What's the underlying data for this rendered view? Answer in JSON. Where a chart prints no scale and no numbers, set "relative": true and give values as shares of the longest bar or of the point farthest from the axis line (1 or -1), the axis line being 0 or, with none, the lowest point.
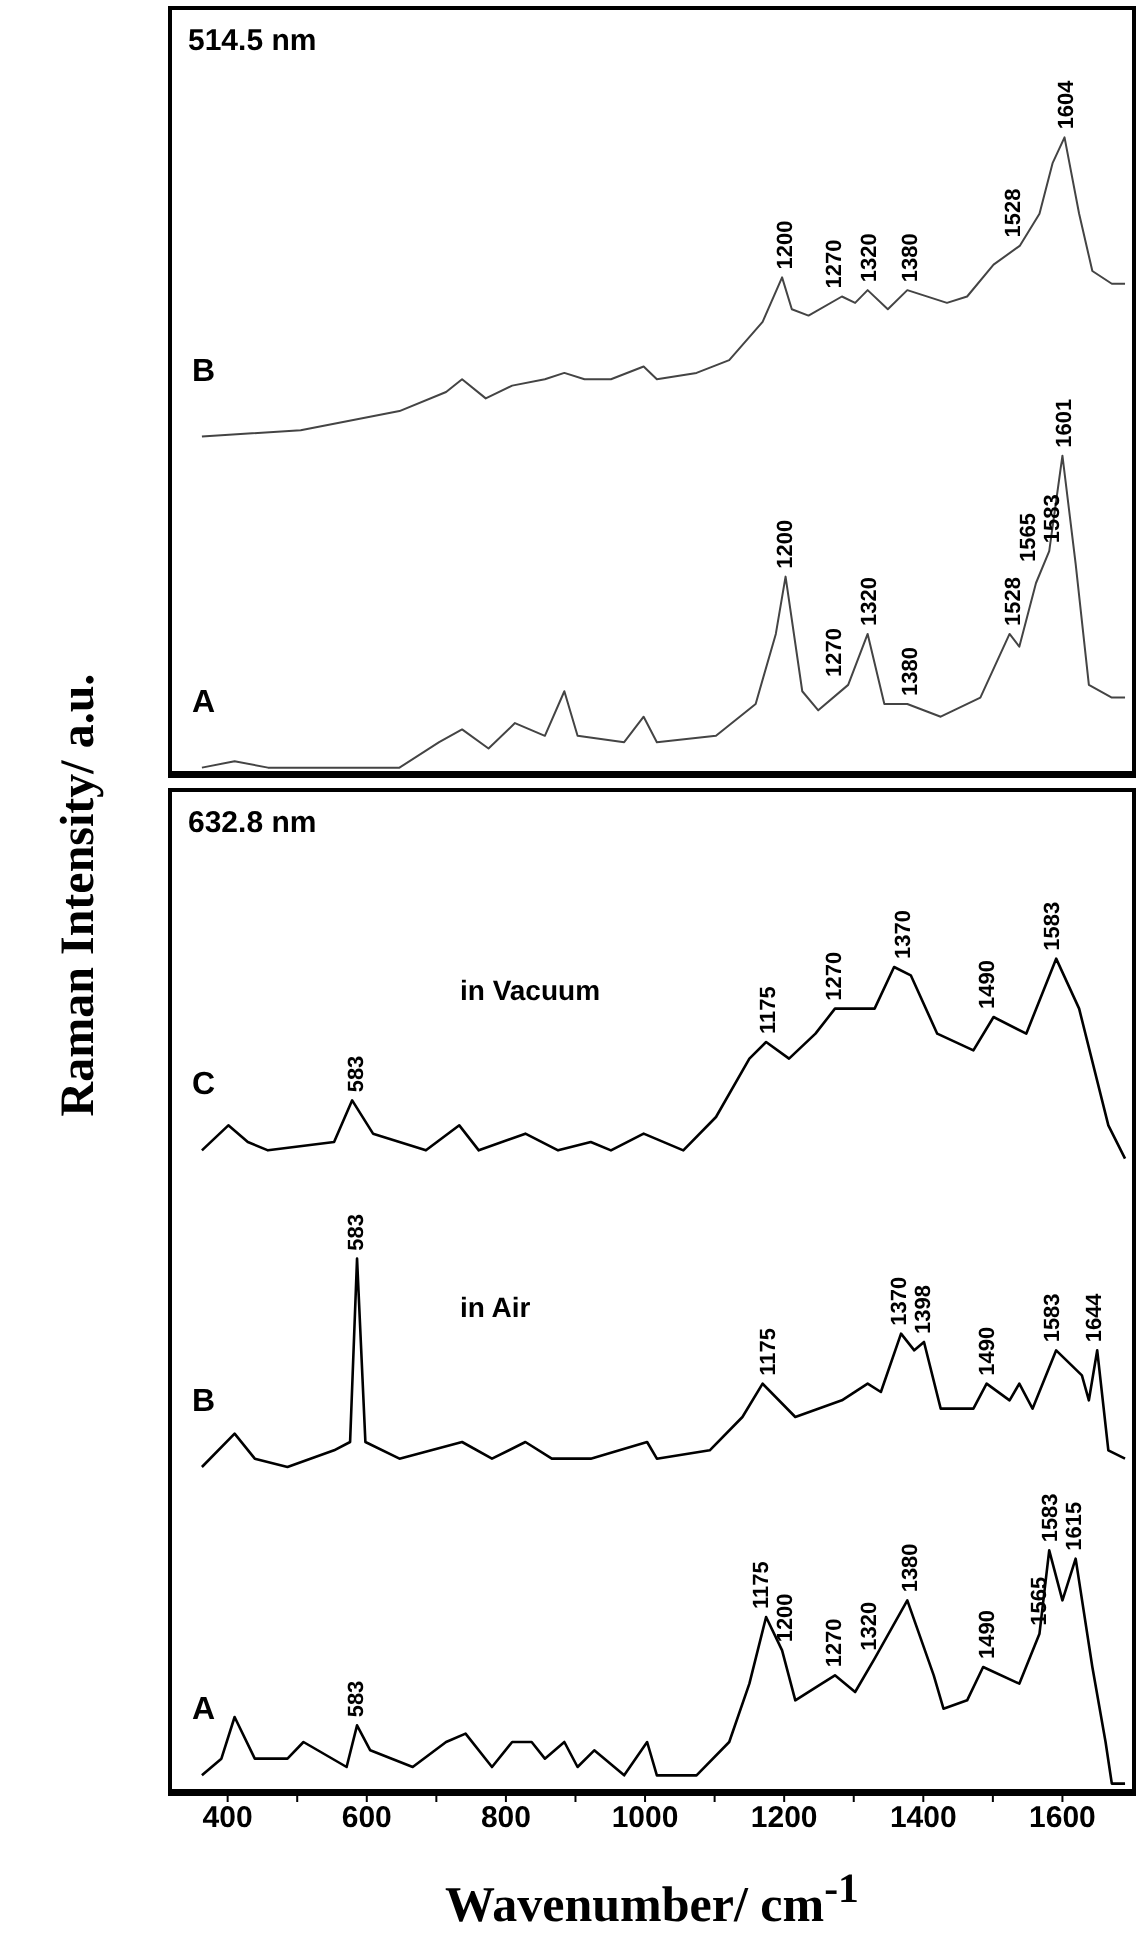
{
  "chart_data": [
    {
      "type": "line",
      "title": "514.5 nm",
      "ylabel": "Raman Intensity/ a.u.",
      "relative": true,
      "xlim": [
        320,
        1700
      ],
      "xticks": [
        400,
        {
          "value": 500,
          "label": null
        },
        600,
        {
          "value": 700,
          "label": null
        },
        800,
        {
          "value": 900,
          "label": null
        },
        1000,
        {
          "value": 1100,
          "label": null
        },
        1200,
        {
          "value": 1300,
          "label": null
        },
        1400,
        {
          "value": 1500,
          "label": null
        },
        1600
      ],
      "tick_labels": false,
      "series": [
        {
          "name": "B",
          "color": "#444444",
          "x": [
            363,
            505,
            647,
            714,
            737,
            771,
            809,
            856,
            884,
            913,
            951,
            998,
            1017,
            1074,
            1121,
            1169,
            1197,
            1211,
            1235,
            1283,
            1302,
            1320,
            1349,
            1377,
            1434,
            1463,
            1501,
            1539,
            1567,
            1586,
            1603,
            1624,
            1643,
            1671,
            1690
          ],
          "values": [
            0.53,
            0.54,
            0.57,
            0.6,
            0.62,
            0.59,
            0.61,
            0.62,
            0.63,
            0.62,
            0.62,
            0.64,
            0.62,
            0.63,
            0.65,
            0.71,
            0.78,
            0.73,
            0.72,
            0.75,
            0.74,
            0.76,
            0.73,
            0.76,
            0.74,
            0.75,
            0.8,
            0.83,
            0.88,
            0.96,
            1.0,
            0.88,
            0.79,
            0.77,
            0.77
          ]
        },
        {
          "name": "A",
          "color": "#444444",
          "x": [
            363,
            410,
            458,
            647,
            704,
            737,
            775,
            813,
            856,
            884,
            903,
            970,
            998,
            1017,
            1102,
            1159,
            1188,
            1202,
            1226,
            1249,
            1292,
            1320,
            1344,
            1377,
            1425,
            1482,
            1524,
            1538,
            1562,
            1581,
            1600,
            1619,
            1638,
            1671,
            1690
          ],
          "values": [
            0.01,
            0.02,
            0.01,
            0.01,
            0.05,
            0.07,
            0.04,
            0.08,
            0.06,
            0.13,
            0.06,
            0.05,
            0.09,
            0.05,
            0.06,
            0.11,
            0.22,
            0.31,
            0.13,
            0.1,
            0.14,
            0.22,
            0.11,
            0.11,
            0.09,
            0.12,
            0.22,
            0.2,
            0.3,
            0.35,
            0.5,
            0.33,
            0.14,
            0.12,
            0.12
          ]
        }
      ],
      "annotations": [
        {
          "text": "1200",
          "x": 1200,
          "y": 0.78
        },
        {
          "text": "1270",
          "x": 1270,
          "y": 0.75
        },
        {
          "text": "1320",
          "x": 1320,
          "y": 0.76
        },
        {
          "text": "1380",
          "x": 1380,
          "y": 0.76
        },
        {
          "text": "1528",
          "x": 1528,
          "y": 0.83
        },
        {
          "text": "1604",
          "x": 1604,
          "y": 1.0
        },
        {
          "text": "1200",
          "x": 1200,
          "y": 0.31
        },
        {
          "text": "1270",
          "x": 1270,
          "y": 0.14
        },
        {
          "text": "1320",
          "x": 1320,
          "y": 0.22
        },
        {
          "text": "1380",
          "x": 1380,
          "y": 0.11
        },
        {
          "text": "1528",
          "x": 1528,
          "y": 0.22
        },
        {
          "text": "1565",
          "x": 1565,
          "y": 0.3
        },
        {
          "text": "1583",
          "x": 1583,
          "y": 0.35
        },
        {
          "text": "1601",
          "x": 1601,
          "y": 0.5
        }
      ]
    },
    {
      "type": "line",
      "title": "632.8 nm",
      "xlabel": "Wavenumber/ cm$^{-1}$",
      "relative": true,
      "xlim": [
        320,
        1700
      ],
      "xticks": [
        400,
        {
          "value": 500,
          "label": null
        },
        600,
        {
          "value": 700,
          "label": null
        },
        800,
        {
          "value": 900,
          "label": null
        },
        1000,
        {
          "value": 1100,
          "label": null
        },
        1200,
        {
          "value": 1300,
          "label": null
        },
        1400,
        {
          "value": 1500,
          "label": null
        },
        1600
      ],
      "series": [
        {
          "name": "C",
          "color": "#000000",
          "x": [
            363,
            401,
            429,
            458,
            553,
            579,
            609,
            685,
            733,
            761,
            828,
            875,
            922,
            951,
            998,
            1055,
            1102,
            1150,
            1174,
            1207,
            1245,
            1273,
            1330,
            1358,
            1382,
            1420,
            1472,
            1501,
            1548,
            1591,
            1624,
            1666,
            1690
          ],
          "values": [
            0.77,
            0.8,
            0.78,
            0.77,
            0.78,
            0.83,
            0.79,
            0.77,
            0.8,
            0.77,
            0.79,
            0.77,
            0.78,
            0.77,
            0.79,
            0.77,
            0.81,
            0.88,
            0.9,
            0.88,
            0.91,
            0.94,
            0.94,
            0.99,
            0.98,
            0.91,
            0.89,
            0.93,
            0.91,
            1.0,
            0.94,
            0.8,
            0.76
          ]
        },
        {
          "name": "B",
          "color": "#000000",
          "x": [
            363,
            410,
            439,
            486,
            553,
            576,
            586,
            598,
            647,
            737,
            780,
            828,
            866,
            922,
            1003,
            1017,
            1093,
            1140,
            1169,
            1216,
            1283,
            1320,
            1339,
            1368,
            1387,
            1401,
            1425,
            1472,
            1491,
            1524,
            1538,
            1557,
            1591,
            1628,
            1638,
            1650,
            1666,
            1690
          ],
          "values": [
            0.39,
            0.43,
            0.4,
            0.39,
            0.41,
            0.42,
            0.64,
            0.42,
            0.4,
            0.42,
            0.4,
            0.42,
            0.4,
            0.4,
            0.42,
            0.4,
            0.41,
            0.45,
            0.49,
            0.45,
            0.47,
            0.49,
            0.48,
            0.55,
            0.53,
            0.54,
            0.46,
            0.46,
            0.49,
            0.47,
            0.49,
            0.46,
            0.53,
            0.5,
            0.47,
            0.53,
            0.41,
            0.4
          ]
        },
        {
          "name": "A",
          "color": "#000000",
          "x": [
            363,
            391,
            410,
            439,
            486,
            509,
            571,
            586,
            605,
            666,
            714,
            742,
            780,
            809,
            837,
            856,
            884,
            903,
            927,
            970,
            1003,
            1017,
            1074,
            1121,
            1150,
            1174,
            1197,
            1216,
            1254,
            1273,
            1302,
            1330,
            1377,
            1415,
            1429,
            1463,
            1486,
            1538,
            1567,
            1581,
            1600,
            1619,
            1643,
            1662,
            1671,
            1690
          ],
          "values": [
            0.02,
            0.04,
            0.09,
            0.04,
            0.04,
            0.06,
            0.03,
            0.08,
            0.05,
            0.03,
            0.06,
            0.07,
            0.03,
            0.06,
            0.06,
            0.04,
            0.06,
            0.03,
            0.05,
            0.02,
            0.06,
            0.02,
            0.02,
            0.06,
            0.13,
            0.21,
            0.17,
            0.11,
            0.13,
            0.14,
            0.12,
            0.16,
            0.23,
            0.14,
            0.1,
            0.11,
            0.15,
            0.13,
            0.19,
            0.29,
            0.23,
            0.28,
            0.15,
            0.06,
            0.01,
            0.01
          ]
        }
      ],
      "annotations": [
        "in Vacuum",
        "in Air",
        {
          "text": "583",
          "x": 583,
          "y": 0.83
        },
        {
          "text": "1175",
          "x": 1175,
          "y": 0.9
        },
        {
          "text": "1270",
          "x": 1270,
          "y": 0.94
        },
        {
          "text": "1370",
          "x": 1370,
          "y": 0.99
        },
        {
          "text": "1490",
          "x": 1490,
          "y": 0.93
        },
        {
          "text": "1583",
          "x": 1583,
          "y": 1.0
        },
        {
          "text": "583",
          "x": 583,
          "y": 0.64
        },
        {
          "text": "1175",
          "x": 1175,
          "y": 0.49
        },
        {
          "text": "1370",
          "x": 1370,
          "y": 0.55
        },
        {
          "text": "1398",
          "x": 1398,
          "y": 0.54
        },
        {
          "text": "1490",
          "x": 1490,
          "y": 0.49
        },
        {
          "text": "1583",
          "x": 1583,
          "y": 0.53
        },
        {
          "text": "1644",
          "x": 1644,
          "y": 0.53
        },
        {
          "text": "583",
          "x": 583,
          "y": 0.08
        },
        {
          "text": "1175",
          "x": 1175,
          "y": 0.21
        },
        {
          "text": "1200",
          "x": 1200,
          "y": 0.17
        },
        {
          "text": "1270",
          "x": 1270,
          "y": 0.14
        },
        {
          "text": "1320",
          "x": 1320,
          "y": 0.16
        },
        {
          "text": "1380",
          "x": 1380,
          "y": 0.23
        },
        {
          "text": "1490",
          "x": 1490,
          "y": 0.15
        },
        {
          "text": "1565",
          "x": 1565,
          "y": 0.19
        },
        {
          "text": "1583",
          "x": 1583,
          "y": 0.29
        },
        {
          "text": "1615",
          "x": 1615,
          "y": 0.28
        }
      ]
    }
  ]
}
